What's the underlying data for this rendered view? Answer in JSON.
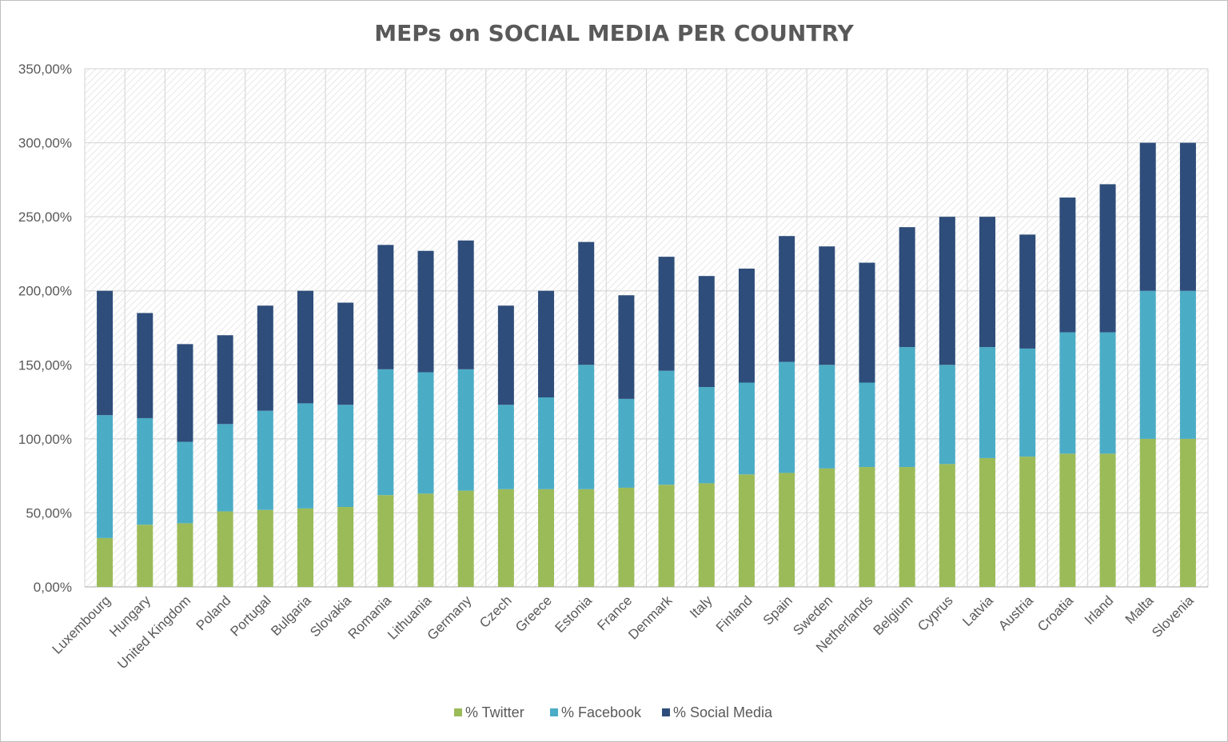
{
  "chart_data": {
    "type": "bar",
    "stacked": true,
    "title": "MEPs on SOCIAL MEDIA PER COUNTRY",
    "xlabel": "",
    "ylabel": "",
    "ylim": [
      0,
      350
    ],
    "ytick_values": [
      0,
      50,
      100,
      150,
      200,
      250,
      300,
      350
    ],
    "ytick_labels": [
      "0,00%",
      "50,00%",
      "100,00%",
      "150,00%",
      "200,00%",
      "250,00%",
      "300,00%",
      "350,00%"
    ],
    "grid": true,
    "legend_position": "bottom",
    "categories": [
      "Luxembourg",
      "Hungary",
      "United Kingdom",
      "Poland",
      "Portugal",
      "Bulgaria",
      "Slovakia",
      "Romania",
      "Lithuania",
      "Germany",
      "Czech",
      "Greece",
      "Estonia",
      "France",
      "Denmark",
      "Italy",
      "Finland",
      "Spain",
      "Sweden",
      "Netherlands",
      "Belgium",
      "Cyprus",
      "Latvia",
      "Austria",
      "Croatia",
      "Irland",
      "Malta",
      "Slovenia"
    ],
    "series": [
      {
        "name": "% Twitter",
        "color": "#9bbb59",
        "values": [
          33,
          42,
          43,
          51,
          52,
          53,
          54,
          62,
          63,
          65,
          66,
          66,
          66,
          67,
          69,
          70,
          76,
          77,
          80,
          81,
          81,
          83,
          87,
          88,
          90,
          90,
          100,
          100
        ]
      },
      {
        "name": "% Facebook",
        "color": "#4bacc6",
        "values": [
          83,
          72,
          55,
          59,
          67,
          71,
          69,
          85,
          82,
          82,
          57,
          62,
          84,
          60,
          77,
          65,
          62,
          75,
          70,
          57,
          81,
          67,
          75,
          73,
          82,
          82,
          100,
          100
        ]
      },
      {
        "name": "% Social Media",
        "color": "#2e4d7a",
        "values": [
          84,
          71,
          66,
          60,
          71,
          76,
          69,
          84,
          82,
          87,
          67,
          72,
          83,
          70,
          77,
          75,
          77,
          85,
          80,
          81,
          81,
          100,
          88,
          77,
          91,
          100,
          100,
          100
        ]
      }
    ]
  }
}
